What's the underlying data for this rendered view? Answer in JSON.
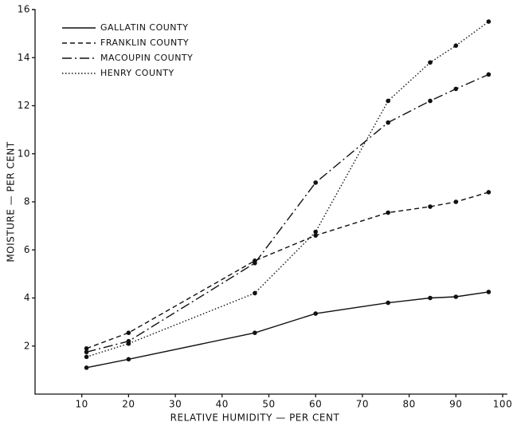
{
  "chart_data": {
    "type": "line",
    "x_label": "RELATIVE HUMIDITY — PER CENT",
    "y_label": "MOISTURE — PER CENT",
    "x": [
      11,
      20,
      47,
      60,
      75.5,
      84.5,
      90,
      97
    ],
    "series": [
      {
        "name": "GALLATIN COUNTY",
        "color": "#111111",
        "dash": "solid",
        "values": [
          1.1,
          1.45,
          2.55,
          3.35,
          3.8,
          4.0,
          4.05,
          4.25
        ]
      },
      {
        "name": "FRANKLIN COUNTY",
        "color": "#111111",
        "dash": "dashed",
        "values": [
          1.9,
          2.55,
          5.55,
          6.6,
          7.55,
          7.8,
          8.0,
          8.4
        ]
      },
      {
        "name": "MACOUPIN COUNTY",
        "color": "#111111",
        "dash": "dashdot",
        "values": [
          1.75,
          2.2,
          5.45,
          8.8,
          11.3,
          12.2,
          12.7,
          13.3
        ]
      },
      {
        "name": "HENRY COUNTY",
        "color": "#111111",
        "dash": "dotted",
        "values": [
          1.55,
          2.1,
          4.2,
          6.75,
          12.2,
          13.8,
          14.5,
          15.5
        ]
      }
    ],
    "xlim": [
      0,
      100
    ],
    "xticks": [
      10,
      20,
      30,
      40,
      50,
      60,
      70,
      80,
      90,
      100
    ],
    "ylim": [
      0,
      16
    ],
    "yticks": [
      2,
      4,
      6,
      8,
      10,
      12,
      14,
      16
    ],
    "grid": false,
    "legend": "upper left"
  }
}
